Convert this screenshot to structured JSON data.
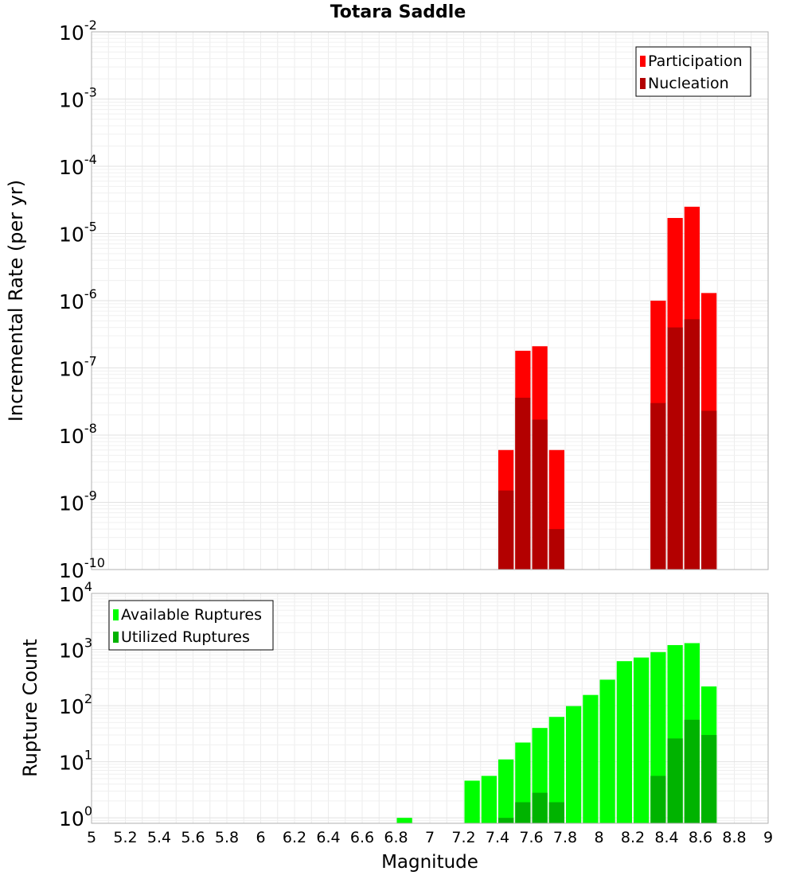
{
  "chart_data": [
    {
      "type": "bar",
      "title": "Totara Saddle",
      "ylabel": "Incremental Rate (per yr)",
      "yscale": "log",
      "ylim": [
        1e-10,
        0.01
      ],
      "xlim": [
        5,
        9
      ],
      "y_tick_labels": [
        {
          "base": "10",
          "exp": "-2"
        },
        {
          "base": "10",
          "exp": "-3"
        },
        {
          "base": "10",
          "exp": "-4"
        },
        {
          "base": "10",
          "exp": "-5"
        },
        {
          "base": "10",
          "exp": "-6"
        },
        {
          "base": "10",
          "exp": "-7"
        },
        {
          "base": "10",
          "exp": "-8"
        },
        {
          "base": "10",
          "exp": "-9"
        },
        {
          "base": "10",
          "exp": "-10"
        }
      ],
      "grid": true,
      "legend_placement": "top-right",
      "series": [
        {
          "name": "Participation",
          "color": "#ff0000",
          "x": [
            7.45,
            7.55,
            7.65,
            7.75,
            8.35,
            8.45,
            8.55,
            8.65
          ],
          "values": [
            6e-09,
            1.8e-07,
            2.1e-07,
            6e-09,
            1e-06,
            1.7e-05,
            2.5e-05,
            1.3e-06
          ]
        },
        {
          "name": "Nucleation",
          "color": "#b30000",
          "x": [
            7.45,
            7.55,
            7.65,
            7.75,
            8.35,
            8.45,
            8.55,
            8.65
          ],
          "values": [
            1.5e-09,
            3.6e-08,
            1.7e-08,
            4e-10,
            3e-08,
            4e-07,
            5.3e-07,
            2.3e-08
          ]
        }
      ]
    },
    {
      "type": "bar",
      "ylabel": "Rupture Count",
      "xlabel": "Magnitude",
      "yscale": "log",
      "ylim": [
        0.8,
        10000
      ],
      "xlim": [
        5,
        9
      ],
      "x_tick_labels": [
        "5",
        "5.2",
        "5.4",
        "5.6",
        "5.8",
        "6",
        "6.2",
        "6.4",
        "6.6",
        "6.8",
        "7",
        "7.2",
        "7.4",
        "7.6",
        "7.8",
        "8",
        "8.2",
        "8.4",
        "8.6",
        "8.8",
        "9"
      ],
      "y_tick_labels": [
        {
          "base": "10",
          "exp": "4"
        },
        {
          "base": "10",
          "exp": "3"
        },
        {
          "base": "10",
          "exp": "2"
        },
        {
          "base": "10",
          "exp": "1"
        },
        {
          "base": "10",
          "exp": "0"
        }
      ],
      "grid": true,
      "legend_placement": "top-left",
      "series": [
        {
          "name": "Available Ruptures",
          "color": "#00ff00",
          "x": [
            6.85,
            7.25,
            7.35,
            7.45,
            7.55,
            7.65,
            7.75,
            7.85,
            7.95,
            8.05,
            8.15,
            8.25,
            8.35,
            8.45,
            8.55,
            8.65
          ],
          "values": [
            1,
            4.6,
            5.6,
            11,
            22,
            40,
            63,
            98,
            155,
            290,
            620,
            720,
            900,
            1200,
            1300,
            220
          ]
        },
        {
          "name": "Utilized Ruptures",
          "color": "#00b300",
          "x": [
            7.45,
            7.55,
            7.65,
            7.75,
            8.35,
            8.45,
            8.55,
            8.65
          ],
          "values": [
            1,
            1.9,
            2.8,
            1.9,
            5.6,
            26,
            56,
            30
          ]
        }
      ]
    }
  ]
}
